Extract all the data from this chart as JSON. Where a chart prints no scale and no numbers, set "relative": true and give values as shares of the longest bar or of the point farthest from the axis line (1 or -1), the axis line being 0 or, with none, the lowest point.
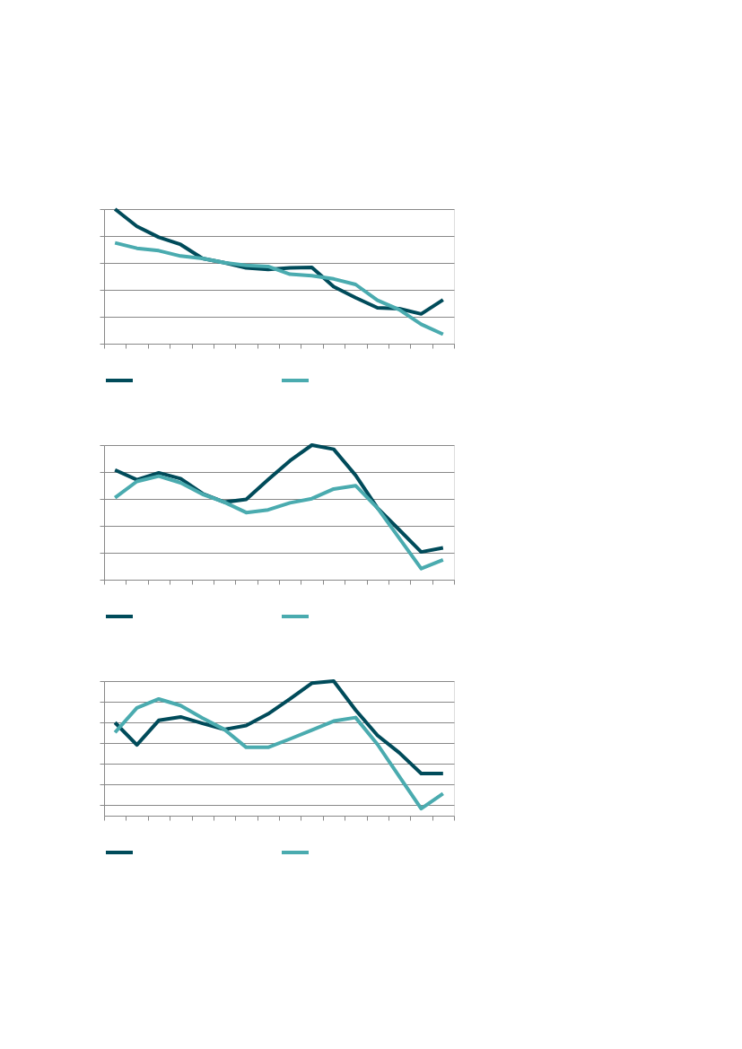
{
  "chart_data": [
    {
      "type": "line",
      "relative": true,
      "grid": "y",
      "categories": [
        null,
        null,
        null,
        null,
        null,
        null,
        null,
        null,
        null,
        null,
        null,
        null,
        null,
        null,
        null,
        null
      ],
      "series": [
        {
          "color": "#004b5a",
          "values": [
            1,
            0.872,
            0.791,
            0.737,
            0.633,
            0.602,
            0.563,
            0.551,
            0.563,
            0.567,
            0.423,
            0.342,
            0.267,
            0.26,
            0.221,
            0.326
          ]
        },
        {
          "color": "#4aabaf",
          "values": [
            0.749,
            0.709,
            0.691,
            0.651,
            0.633,
            0.602,
            0.581,
            0.574,
            0.516,
            0.505,
            0.481,
            0.44,
            0.323,
            0.253,
            0.144,
            0.07
          ]
        }
      ]
    },
    {
      "type": "line",
      "relative": true,
      "grid": "y",
      "categories": [
        null,
        null,
        null,
        null,
        null,
        null,
        null,
        null,
        null,
        null,
        null,
        null,
        null,
        null,
        null,
        null
      ],
      "series": [
        {
          "color": "#004b5a",
          "values": [
            0.815,
            0.743,
            0.794,
            0.751,
            0.64,
            0.576,
            0.596,
            0.743,
            0.884,
            1,
            0.969,
            0.776,
            0.532,
            0.37,
            0.206,
            0.237
          ]
        },
        {
          "color": "#4aabaf",
          "values": [
            0.609,
            0.73,
            0.769,
            0.72,
            0.635,
            0.576,
            0.499,
            0.519,
            0.571,
            0.602,
            0.674,
            0.699,
            0.532,
            0.308,
            0.082,
            0.147
          ]
        }
      ]
    },
    {
      "type": "line",
      "relative": true,
      "grid": "y",
      "categories": [
        null,
        null,
        null,
        null,
        null,
        null,
        null,
        null,
        null,
        null,
        null,
        null,
        null,
        null,
        null,
        null
      ],
      "series": [
        {
          "color": "#004b5a",
          "values": [
            0.599,
            0.383,
            0.62,
            0.654,
            0.591,
            0.533,
            0.571,
            0.683,
            0.827,
            0.98,
            1,
            0.72,
            0.476,
            0.308,
            0.107,
            0.107
          ]
        },
        {
          "color": "#4aabaf",
          "values": [
            0.504,
            0.741,
            0.827,
            0.764,
            0.643,
            0.533,
            0.36,
            0.36,
            0.441,
            0.527,
            0.614,
            0.648,
            0.389,
            0.078,
            -0.231,
            -0.086
          ]
        }
      ]
    }
  ]
}
